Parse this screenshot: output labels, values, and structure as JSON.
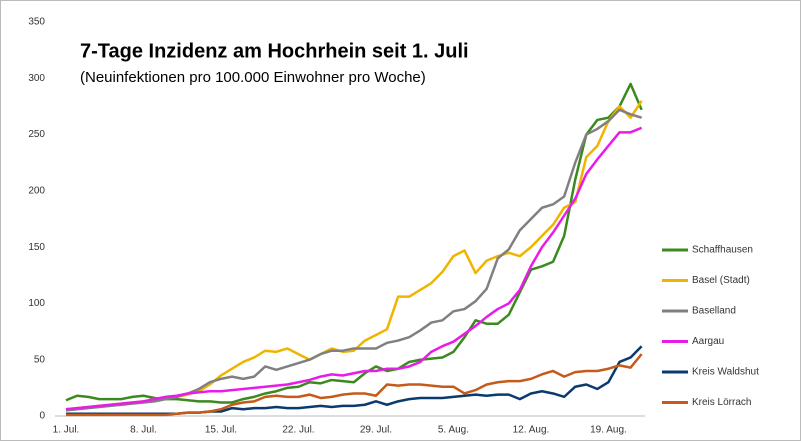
{
  "chart_data": {
    "type": "line",
    "title": "7-Tage Inzidenz am Hochrhein seit 1. Juli",
    "subtitle": "(Neuinfektionen pro 100.000 Einwohner pro Woche)",
    "categories": [
      "1. Jul.",
      null,
      null,
      null,
      null,
      null,
      null,
      "8. Jul.",
      null,
      null,
      null,
      null,
      null,
      null,
      "15. Jul.",
      null,
      null,
      null,
      null,
      null,
      null,
      "22. Jul.",
      null,
      null,
      null,
      null,
      null,
      null,
      "29. Jul.",
      null,
      null,
      null,
      null,
      null,
      null,
      "5. Aug.",
      null,
      null,
      null,
      null,
      null,
      null,
      "12. Aug.",
      null,
      null,
      null,
      null,
      null,
      null,
      "19. Aug.",
      null,
      null,
      null
    ],
    "series": [
      {
        "name": "Schaffhausen",
        "color": "#3b8a1f",
        "values": [
          14,
          18,
          17,
          15,
          15,
          15,
          17,
          18,
          16,
          15,
          15,
          14,
          13,
          13,
          12,
          12,
          15,
          17,
          20,
          22,
          25,
          26,
          30,
          29,
          32,
          31,
          30,
          38,
          44,
          40,
          42,
          48,
          50,
          51,
          52,
          57,
          70,
          85,
          82,
          82,
          90,
          110,
          130,
          133,
          137,
          160,
          210,
          250,
          263,
          265,
          275,
          295,
          272
        ]
      },
      {
        "name": "Basel (Stadt)",
        "color": "#f0b400",
        "values": [
          6,
          7,
          8,
          9,
          10,
          11,
          12,
          13,
          15,
          16,
          17,
          19,
          22,
          28,
          36,
          42,
          48,
          52,
          58,
          57,
          60,
          55,
          50,
          55,
          60,
          57,
          58,
          67,
          72,
          77,
          106,
          106,
          112,
          118,
          128,
          142,
          147,
          127,
          138,
          142,
          145,
          142,
          150,
          160,
          170,
          185,
          190,
          230,
          240,
          262,
          275,
          265,
          280
        ]
      },
      {
        "name": "Baselland",
        "color": "#808080",
        "values": [
          5,
          6,
          7,
          8,
          9,
          10,
          11,
          12,
          13,
          15,
          17,
          20,
          24,
          30,
          33,
          35,
          33,
          35,
          44,
          41,
          44,
          47,
          50,
          55,
          58,
          58,
          60,
          60,
          60,
          65,
          67,
          70,
          76,
          83,
          85,
          93,
          95,
          102,
          113,
          140,
          148,
          165,
          175,
          185,
          188,
          195,
          225,
          250,
          255,
          262,
          272,
          268,
          265
        ]
      },
      {
        "name": "Aargau",
        "color": "#e81ce8",
        "values": [
          6,
          7,
          8,
          9,
          10,
          11,
          12,
          13,
          15,
          17,
          18,
          20,
          21,
          22,
          22,
          23,
          24,
          25,
          26,
          27,
          28,
          30,
          32,
          35,
          37,
          36,
          38,
          40,
          40,
          42,
          42,
          44,
          48,
          57,
          62,
          66,
          73,
          80,
          88,
          95,
          100,
          112,
          133,
          150,
          163,
          178,
          193,
          215,
          228,
          240,
          252,
          252,
          256
        ]
      },
      {
        "name": "Kreis Waldshut",
        "color": "#0b3b6e",
        "values": [
          2,
          2,
          2,
          2,
          2,
          2,
          2,
          2,
          2,
          2,
          2,
          3,
          3,
          4,
          4,
          7,
          6,
          7,
          7,
          8,
          7,
          7,
          8,
          9,
          8,
          9,
          9,
          10,
          13,
          10,
          13,
          15,
          16,
          16,
          16,
          17,
          18,
          19,
          18,
          19,
          19,
          15,
          20,
          22,
          20,
          17,
          26,
          28,
          24,
          30,
          48,
          52,
          62
        ]
      },
      {
        "name": "Kreis Lörrach",
        "color": "#c55a1a",
        "values": [
          1,
          1,
          1,
          1,
          1,
          1,
          1,
          1,
          1,
          1,
          2,
          3,
          3,
          4,
          6,
          10,
          12,
          13,
          17,
          18,
          17,
          17,
          19,
          16,
          17,
          19,
          20,
          20,
          18,
          28,
          27,
          28,
          28,
          27,
          26,
          26,
          20,
          23,
          28,
          30,
          31,
          31,
          33,
          37,
          40,
          35,
          39,
          40,
          40,
          42,
          45,
          43,
          55
        ]
      }
    ],
    "ylim": [
      0,
      350
    ],
    "yticks": [
      0,
      50,
      100,
      150,
      200,
      250,
      300,
      350
    ],
    "grid": false,
    "legend": "right"
  }
}
